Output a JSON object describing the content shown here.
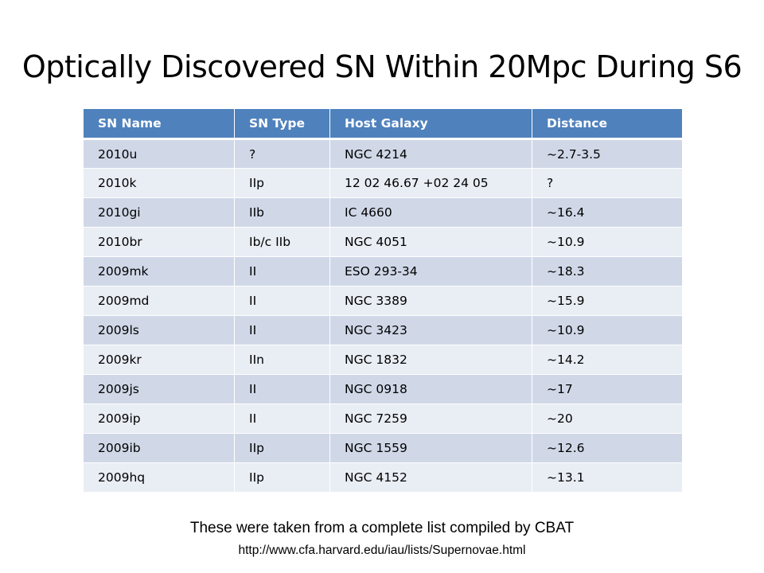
{
  "slide": {
    "title": "Optically Discovered SN Within 20Mpc During S6",
    "footnote": "These were taken from a complete list compiled by CBAT",
    "source_url": "http://www.cfa.harvard.edu/iau/lists/Supernovae.html"
  },
  "table": {
    "headers": [
      "SN Name",
      "SN Type",
      "Host Galaxy",
      "Distance"
    ],
    "rows": [
      [
        "2010u",
        "?",
        "NGC 4214",
        "~2.7-3.5"
      ],
      [
        "2010k",
        "IIp",
        "12 02 46.67 +02 24 05",
        "?"
      ],
      [
        "2010gi",
        "IIb",
        "IC 4660",
        "~16.4"
      ],
      [
        "2010br",
        "Ib/c IIb",
        "NGC 4051",
        "~10.9"
      ],
      [
        "2009mk",
        "II",
        "ESO 293-34",
        "~18.3"
      ],
      [
        "2009md",
        "II",
        "NGC 3389",
        "~15.9"
      ],
      [
        "2009ls",
        "II",
        "NGC 3423",
        "~10.9"
      ],
      [
        "2009kr",
        "IIn",
        "NGC 1832",
        "~14.2"
      ],
      [
        "2009js",
        "II",
        "NGC 0918",
        "~17"
      ],
      [
        "2009ip",
        "II",
        "NGC 7259",
        "~20"
      ],
      [
        "2009ib",
        "IIp",
        "NGC 1559",
        "~12.6"
      ],
      [
        "2009hq",
        "IIp",
        "NGC 4152",
        "~13.1"
      ]
    ]
  },
  "colors": {
    "header_bg": "#4f81bd",
    "row_odd_bg": "#d0d8e8",
    "row_even_bg": "#e9edf4"
  }
}
